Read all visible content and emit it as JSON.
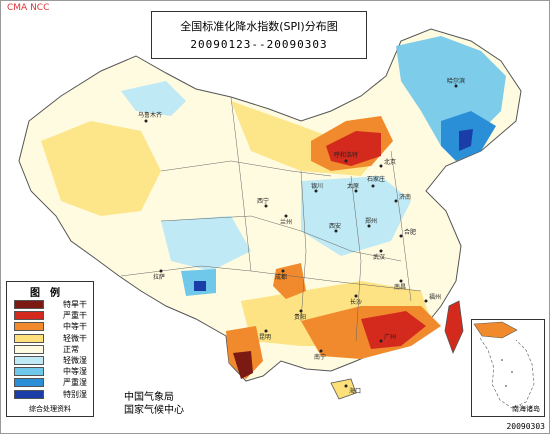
{
  "watermark": "CMA NCC",
  "title": {
    "line1": "全国标准化降水指数(SPI)分布图",
    "line2": "20090123--20090303"
  },
  "legend": {
    "title": "图例",
    "items": [
      {
        "label": "特旱干",
        "color": "#7b1a12"
      },
      {
        "label": "严重干",
        "color": "#d42a1e"
      },
      {
        "label": "中等干",
        "color": "#f08a2c"
      },
      {
        "label": "轻微干",
        "color": "#fde07a"
      },
      {
        "label": "正常",
        "color": "#fffbe0"
      },
      {
        "label": "轻微湿",
        "color": "#bfe9f4"
      },
      {
        "label": "中等湿",
        "color": "#6fc7ea"
      },
      {
        "label": "严重湿",
        "color": "#2b8fd8"
      },
      {
        "label": "特别湿",
        "color": "#1a3da8"
      }
    ],
    "footnote": "综合处理资料"
  },
  "agency": {
    "line1": "中国气象局",
    "line2": "国家气候中心"
  },
  "inset_label": "南海诸岛",
  "date_stamp": "20090303",
  "cities": [
    {
      "name": "乌鲁木齐"
    },
    {
      "name": "呼和浩特"
    },
    {
      "name": "北京"
    },
    {
      "name": "太原"
    },
    {
      "name": "石家庄"
    },
    {
      "name": "济南"
    },
    {
      "name": "西宁"
    },
    {
      "name": "兰州"
    },
    {
      "name": "银川"
    },
    {
      "name": "西安"
    },
    {
      "name": "郑州"
    },
    {
      "name": "合肥"
    },
    {
      "name": "武汉"
    },
    {
      "name": "成都"
    },
    {
      "name": "拉萨"
    },
    {
      "name": "昆明"
    },
    {
      "name": "贵阳"
    },
    {
      "name": "长沙"
    },
    {
      "name": "南宁"
    },
    {
      "name": "广州"
    },
    {
      "name": "福州"
    },
    {
      "name": "南昌"
    },
    {
      "name": "海口"
    },
    {
      "name": "哈尔滨"
    }
  ]
}
